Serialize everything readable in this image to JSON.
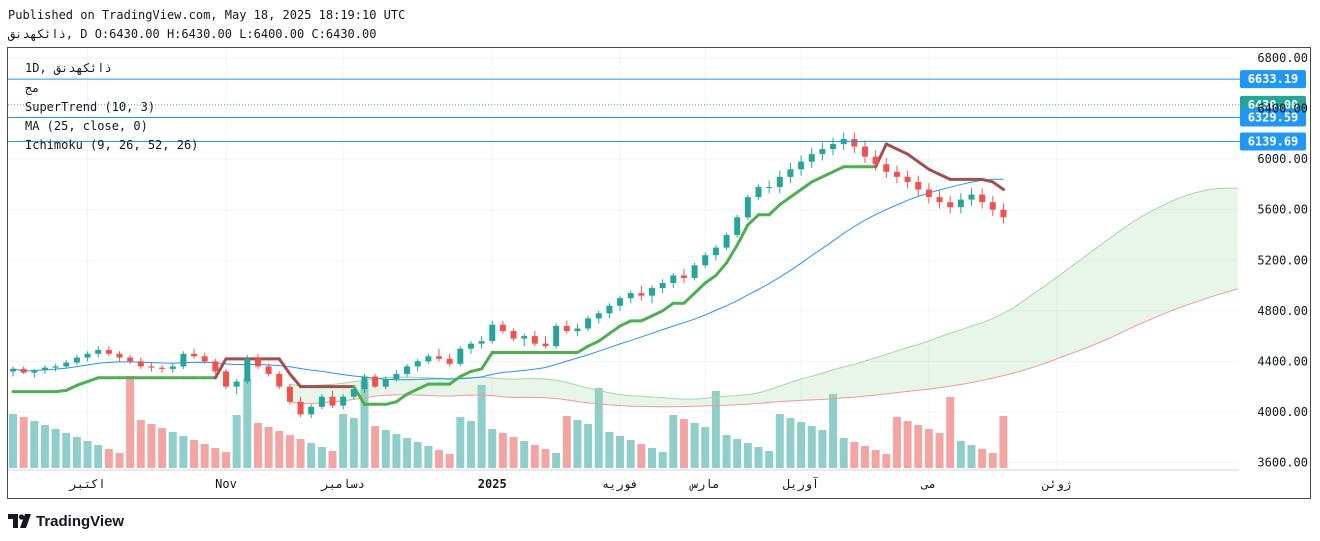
{
  "header": {
    "published": "Published on TradingView.com, May 18, 2025 18:19:10 UTC",
    "symbol": "ذائكهدنق",
    "ohlc": ", D O:6430.00 H:6430.00 L:6400.00 C:6430.00"
  },
  "legend": {
    "interval": "1D",
    "symbol": "ذائكهدنق",
    "title": "مج",
    "supertrend": "SuperTrend (10, 3)",
    "ma": "MA (25, close, 0)",
    "ichimoku": "Ichimoku (9, 26, 52, 26)"
  },
  "brand": {
    "name": "TradingView"
  },
  "colors": {
    "up": "#26a69a",
    "down": "#ef5350",
    "up_vol": "#8fcec9",
    "down_vol": "#f3a5a4",
    "supertrend_up": "#4caf50",
    "supertrend_down": "#a14f4f",
    "ma": "#2196f3",
    "cloud_green": "#a5d6a7",
    "cloud_red": "#ef9a9a",
    "tag": "#2196f3",
    "grid": "#f0f3fa"
  },
  "chart_data": {
    "type": "candlestick",
    "title": "ذائكهدنق, 1D",
    "y_axis": {
      "ticks": [
        "6800.00",
        "6400.00",
        "6000.00",
        "5600.00",
        "5200.00",
        "4800.00",
        "4400.00",
        "4000.00",
        "3600.00"
      ],
      "range": [
        3540,
        6880
      ]
    },
    "x_axis": {
      "labels": [
        {
          "label": "اکتبر",
          "bar": 7
        },
        {
          "label": "Nov",
          "bar": 20
        },
        {
          "label": "دسامبر",
          "bar": 31
        },
        {
          "label": "2025",
          "bar": 45
        },
        {
          "label": "فوریه",
          "bar": 57
        },
        {
          "label": "مارس",
          "bar": 65
        },
        {
          "label": "آوریل",
          "bar": 74
        },
        {
          "label": "می",
          "bar": 86
        },
        {
          "label": "ژوئن",
          "bar": 98
        }
      ]
    },
    "price_tags": [
      {
        "value": 6633.19,
        "label": "6633.19",
        "line": "solid"
      },
      {
        "value": 6430.0,
        "label": "6430.00",
        "line": "dotted"
      },
      {
        "value": 6329.59,
        "label": "6329.59",
        "line": "solid"
      },
      {
        "value": 6139.69,
        "label": "6139.69",
        "line": "solid"
      }
    ],
    "last_bar": 93,
    "candles": [
      [
        4320,
        4360,
        4280,
        4340
      ],
      [
        4340,
        4360,
        4300,
        4310
      ],
      [
        4310,
        4340,
        4270,
        4330
      ],
      [
        4330,
        4370,
        4300,
        4350
      ],
      [
        4350,
        4380,
        4320,
        4360
      ],
      [
        4360,
        4410,
        4340,
        4390
      ],
      [
        4390,
        4450,
        4370,
        4430
      ],
      [
        4430,
        4480,
        4400,
        4460
      ],
      [
        4460,
        4520,
        4430,
        4490
      ],
      [
        4490,
        4520,
        4440,
        4460
      ],
      [
        4460,
        4480,
        4400,
        4430
      ],
      [
        4430,
        4450,
        4380,
        4400
      ],
      [
        4400,
        4430,
        4340,
        4360
      ],
      [
        4360,
        4390,
        4320,
        4350
      ],
      [
        4350,
        4370,
        4310,
        4340
      ],
      [
        4340,
        4380,
        4310,
        4360
      ],
      [
        4360,
        4480,
        4340,
        4460
      ],
      [
        4460,
        4500,
        4420,
        4440
      ],
      [
        4440,
        4470,
        4380,
        4400
      ],
      [
        4400,
        4420,
        4300,
        4320
      ],
      [
        4320,
        4340,
        4180,
        4200
      ],
      [
        4200,
        4260,
        4140,
        4240
      ],
      [
        4240,
        4450,
        4220,
        4420
      ],
      [
        4420,
        4460,
        4340,
        4360
      ],
      [
        4360,
        4380,
        4280,
        4300
      ],
      [
        4300,
        4320,
        4180,
        4200
      ],
      [
        4200,
        4220,
        4060,
        4080
      ],
      [
        4080,
        4120,
        3960,
        3980
      ],
      [
        3980,
        4060,
        3950,
        4040
      ],
      [
        4040,
        4140,
        4020,
        4120
      ],
      [
        4120,
        4170,
        4030,
        4050
      ],
      [
        4050,
        4140,
        4020,
        4120
      ],
      [
        4120,
        4200,
        4100,
        4180
      ],
      [
        4180,
        4300,
        4150,
        4280
      ],
      [
        4280,
        4300,
        4190,
        4200
      ],
      [
        4200,
        4280,
        4180,
        4260
      ],
      [
        4260,
        4330,
        4240,
        4300
      ],
      [
        4300,
        4380,
        4280,
        4360
      ],
      [
        4360,
        4420,
        4320,
        4400
      ],
      [
        4400,
        4460,
        4380,
        4440
      ],
      [
        4440,
        4500,
        4400,
        4420
      ],
      [
        4420,
        4460,
        4360,
        4380
      ],
      [
        4380,
        4520,
        4360,
        4500
      ],
      [
        4500,
        4560,
        4460,
        4540
      ],
      [
        4540,
        4600,
        4500,
        4560
      ],
      [
        4560,
        4720,
        4540,
        4690
      ],
      [
        4690,
        4720,
        4620,
        4640
      ],
      [
        4640,
        4660,
        4560,
        4580
      ],
      [
        4580,
        4620,
        4520,
        4600
      ],
      [
        4600,
        4640,
        4520,
        4540
      ],
      [
        4540,
        4600,
        4500,
        4520
      ],
      [
        4520,
        4700,
        4500,
        4680
      ],
      [
        4680,
        4720,
        4620,
        4640
      ],
      [
        4640,
        4700,
        4600,
        4660
      ],
      [
        4660,
        4760,
        4640,
        4740
      ],
      [
        4740,
        4800,
        4700,
        4780
      ],
      [
        4780,
        4860,
        4740,
        4840
      ],
      [
        4840,
        4920,
        4800,
        4900
      ],
      [
        4900,
        4960,
        4860,
        4940
      ],
      [
        4940,
        5000,
        4880,
        4920
      ],
      [
        4920,
        5000,
        4860,
        4980
      ],
      [
        4980,
        5050,
        4940,
        5020
      ],
      [
        5020,
        5100,
        4980,
        5080
      ],
      [
        5080,
        5130,
        5020,
        5060
      ],
      [
        5060,
        5180,
        5040,
        5160
      ],
      [
        5160,
        5260,
        5140,
        5240
      ],
      [
        5240,
        5320,
        5200,
        5300
      ],
      [
        5300,
        5420,
        5280,
        5400
      ],
      [
        5400,
        5560,
        5380,
        5540
      ],
      [
        5540,
        5720,
        5520,
        5700
      ],
      [
        5700,
        5800,
        5680,
        5780
      ]
    ]
  }
}
